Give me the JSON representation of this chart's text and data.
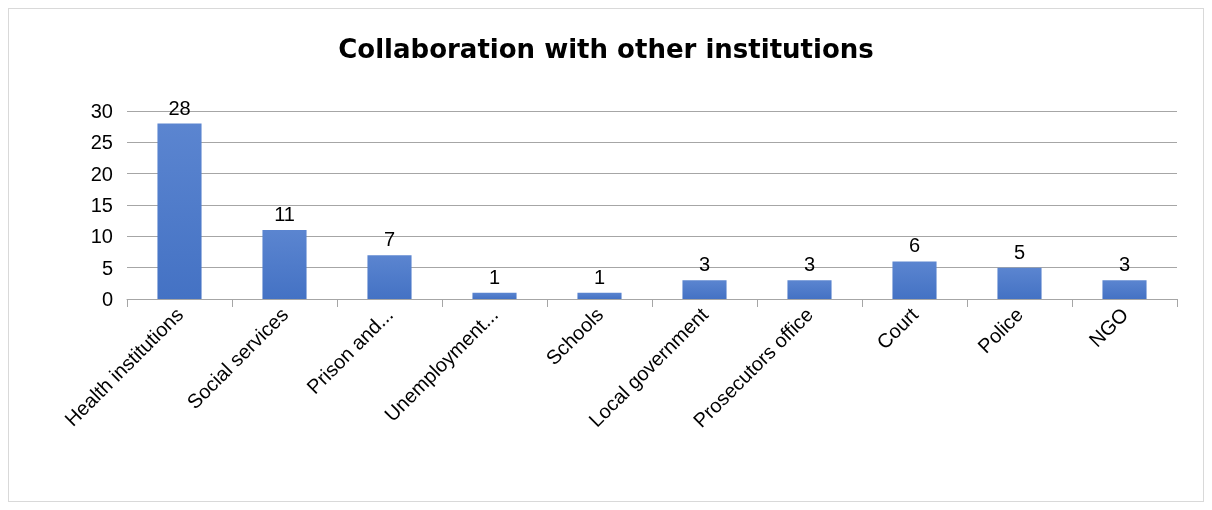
{
  "chart_data": {
    "type": "bar",
    "title": "Collaboration with other institutions",
    "categories": [
      "Health institutions",
      "Social services",
      "Prison and...",
      "Unemployment...",
      "Schools",
      "Local government",
      "Prosecutors office",
      "Court",
      "Police",
      "NGO"
    ],
    "values": [
      28,
      11,
      7,
      1,
      1,
      3,
      3,
      6,
      5,
      3
    ],
    "color": "#4472c4",
    "ylim": [
      0,
      30
    ],
    "yticks": [
      0,
      5,
      10,
      15,
      20,
      25,
      30
    ],
    "grid": "y",
    "data_labels": true
  }
}
